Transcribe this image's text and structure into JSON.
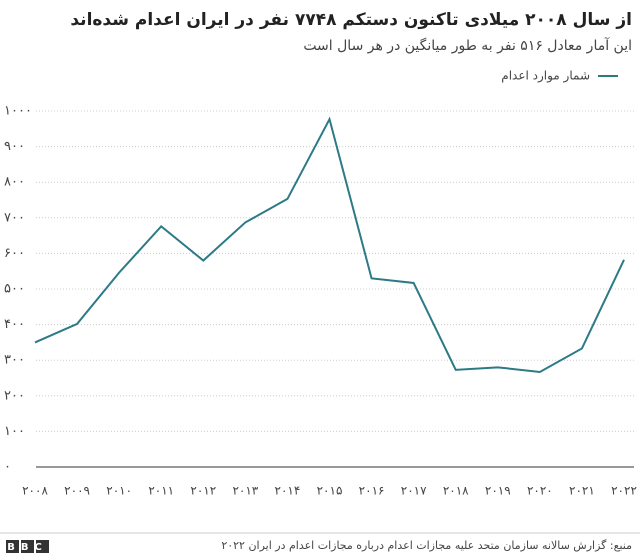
{
  "chart_data": {
    "type": "line",
    "title": "از سال ۲۰۰۸ میلادی تاکنون دستکم ۷۷۴۸ نفر در ایران اعدام شده‌اند",
    "subtitle": "این آمار معادل ۵۱۶ نفر به طور میانگین در هر سال است",
    "source": "منبع: گزارش سالانه سازمان متحد علیه مجازات اعدام درباره مجازات اعدام در ایران ۲۰۲۲",
    "logo": "BBC",
    "categories": [
      "۲۰۰۸",
      "۲۰۰۹",
      "۲۰۱۰",
      "۲۰۱۱",
      "۲۰۱۲",
      "۲۰۱۳",
      "۲۰۱۴",
      "۲۰۱۵",
      "۲۰۱۶",
      "۲۰۱۷",
      "۲۰۱۸",
      "۲۰۱۹",
      "۲۰۲۰",
      "۲۰۲۱",
      "۲۰۲۲"
    ],
    "series": [
      {
        "name": "شمار موارد اعدام",
        "color": "#2b7a86",
        "values": [
          350,
          402,
          546,
          676,
          580,
          687,
          753,
          977,
          530,
          517,
          273,
          280,
          267,
          333,
          582
        ]
      }
    ],
    "ylim": [
      0,
      1000
    ],
    "yticks": [
      {
        "value": 0,
        "label": "۰"
      },
      {
        "value": 100,
        "label": "۱۰۰"
      },
      {
        "value": 200,
        "label": "۲۰۰"
      },
      {
        "value": 300,
        "label": "۳۰۰"
      },
      {
        "value": 400,
        "label": "۴۰۰"
      },
      {
        "value": 500,
        "label": "۵۰۰"
      },
      {
        "value": 600,
        "label": "۶۰۰"
      },
      {
        "value": 700,
        "label": "۷۰۰"
      },
      {
        "value": 800,
        "label": "۸۰۰"
      },
      {
        "value": 900,
        "label": "۹۰۰"
      },
      {
        "value": 1000,
        "label": "۱۰۰۰"
      }
    ],
    "grid": true
  }
}
